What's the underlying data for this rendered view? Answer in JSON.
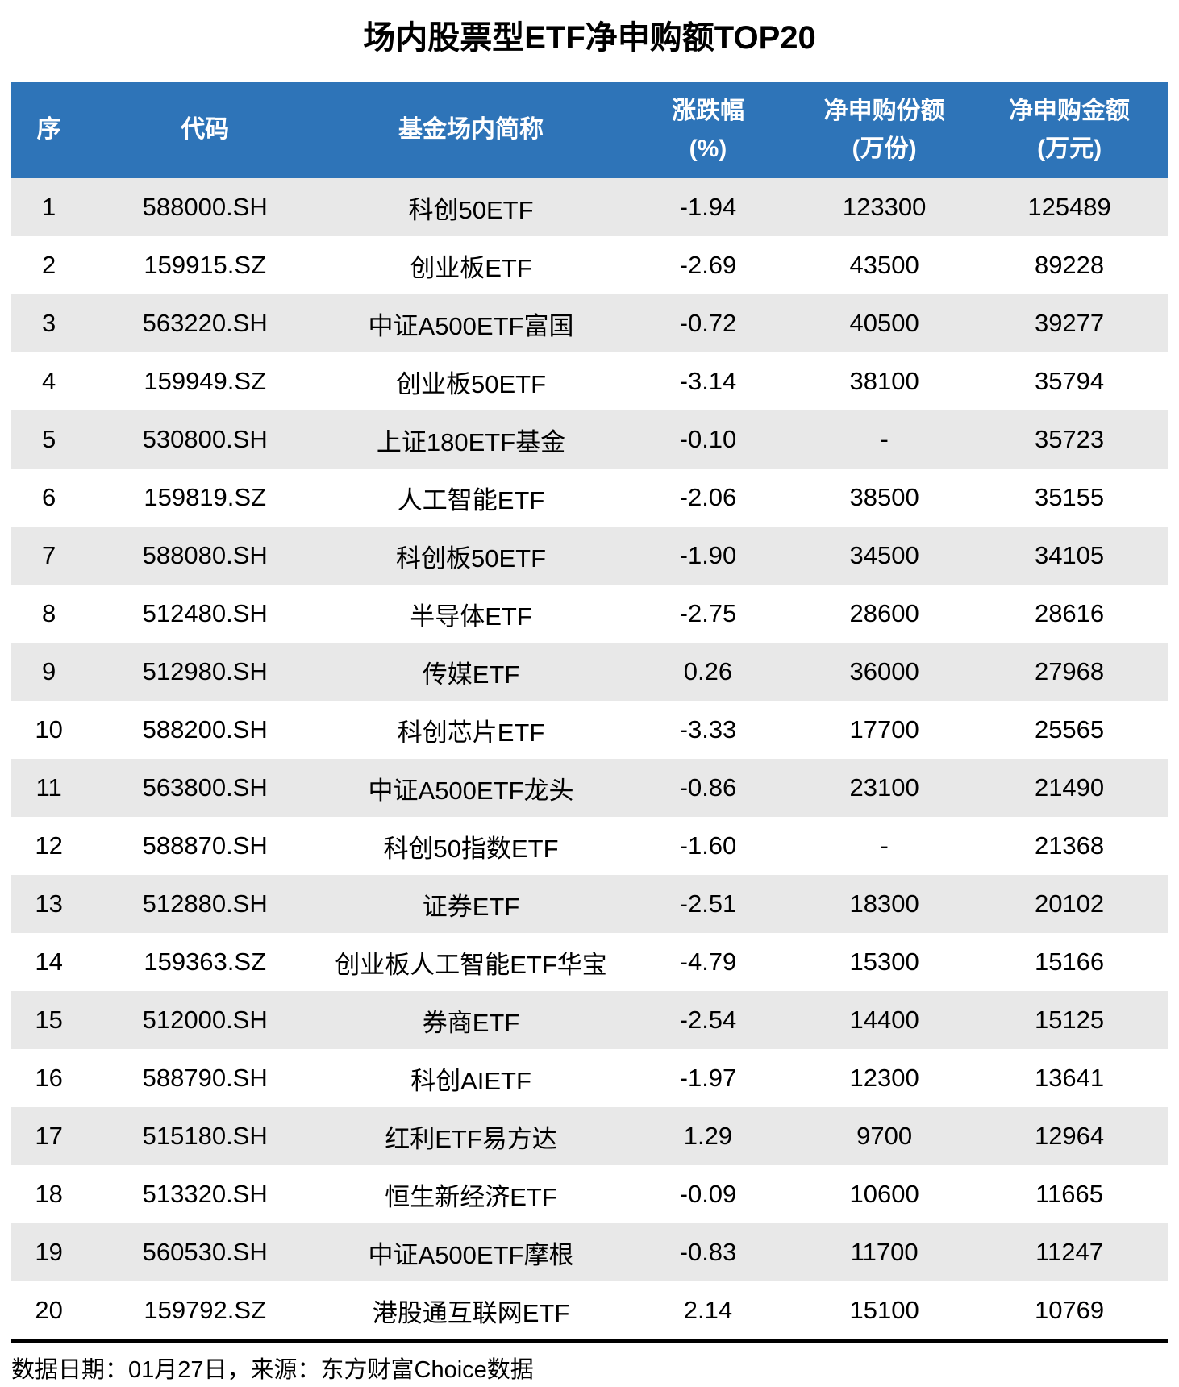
{
  "title": "场内股票型ETF净申购额TOP20",
  "colors": {
    "header_bg": "#2E74B8",
    "header_text": "#FFFFFF",
    "alt_row_bg": "#E8E8E8",
    "body_text": "#000000",
    "divider": "#000000"
  },
  "table": {
    "headers": [
      {
        "line1": "序",
        "line2": ""
      },
      {
        "line1": "代码",
        "line2": ""
      },
      {
        "line1": "基金场内简称",
        "line2": ""
      },
      {
        "line1": "涨跌幅",
        "line2": "(%)"
      },
      {
        "line1": "净申购份额",
        "line2": "(万份)"
      },
      {
        "line1": "净申购金额",
        "line2": "(万元)"
      }
    ],
    "rows": [
      [
        "1",
        "588000.SH",
        "科创50ETF",
        "-1.94",
        "123300",
        "125489"
      ],
      [
        "2",
        "159915.SZ",
        "创业板ETF",
        "-2.69",
        "43500",
        "89228"
      ],
      [
        "3",
        "563220.SH",
        "中证A500ETF富国",
        "-0.72",
        "40500",
        "39277"
      ],
      [
        "4",
        "159949.SZ",
        "创业板50ETF",
        "-3.14",
        "38100",
        "35794"
      ],
      [
        "5",
        "530800.SH",
        "上证180ETF基金",
        "-0.10",
        "-",
        "35723"
      ],
      [
        "6",
        "159819.SZ",
        "人工智能ETF",
        "-2.06",
        "38500",
        "35155"
      ],
      [
        "7",
        "588080.SH",
        "科创板50ETF",
        "-1.90",
        "34500",
        "34105"
      ],
      [
        "8",
        "512480.SH",
        "半导体ETF",
        "-2.75",
        "28600",
        "28616"
      ],
      [
        "9",
        "512980.SH",
        "传媒ETF",
        "0.26",
        "36000",
        "27968"
      ],
      [
        "10",
        "588200.SH",
        "科创芯片ETF",
        "-3.33",
        "17700",
        "25565"
      ],
      [
        "11",
        "563800.SH",
        "中证A500ETF龙头",
        "-0.86",
        "23100",
        "21490"
      ],
      [
        "12",
        "588870.SH",
        "科创50指数ETF",
        "-1.60",
        "-",
        "21368"
      ],
      [
        "13",
        "512880.SH",
        "证券ETF",
        "-2.51",
        "18300",
        "20102"
      ],
      [
        "14",
        "159363.SZ",
        "创业板人工智能ETF华宝",
        "-4.79",
        "15300",
        "15166"
      ],
      [
        "15",
        "512000.SH",
        "券商ETF",
        "-2.54",
        "14400",
        "15125"
      ],
      [
        "16",
        "588790.SH",
        "科创AIETF",
        "-1.97",
        "12300",
        "13641"
      ],
      [
        "17",
        "515180.SH",
        "红利ETF易方达",
        "1.29",
        "9700",
        "12964"
      ],
      [
        "18",
        "513320.SH",
        "恒生新经济ETF",
        "-0.09",
        "10600",
        "11665"
      ],
      [
        "19",
        "560530.SH",
        "中证A500ETF摩根",
        "-0.83",
        "11700",
        "11247"
      ],
      [
        "20",
        "159792.SZ",
        "港股通互联网ETF",
        "2.14",
        "15100",
        "10769"
      ]
    ]
  },
  "footer": "数据日期：01月27日，来源：东方财富Choice数据",
  "chart_data": {
    "type": "table",
    "title": "场内股票型ETF净申购额TOP20",
    "columns": [
      "序",
      "代码",
      "基金场内简称",
      "涨跌幅(%)",
      "净申购份额(万份)",
      "净申购金额(万元)"
    ],
    "rows": [
      [
        1,
        "588000.SH",
        "科创50ETF",
        -1.94,
        123300,
        125489
      ],
      [
        2,
        "159915.SZ",
        "创业板ETF",
        -2.69,
        43500,
        89228
      ],
      [
        3,
        "563220.SH",
        "中证A500ETF富国",
        -0.72,
        40500,
        39277
      ],
      [
        4,
        "159949.SZ",
        "创业板50ETF",
        -3.14,
        38100,
        35794
      ],
      [
        5,
        "530800.SH",
        "上证180ETF基金",
        -0.1,
        null,
        35723
      ],
      [
        6,
        "159819.SZ",
        "人工智能ETF",
        -2.06,
        38500,
        35155
      ],
      [
        7,
        "588080.SH",
        "科创板50ETF",
        -1.9,
        34500,
        34105
      ],
      [
        8,
        "512480.SH",
        "半导体ETF",
        -2.75,
        28600,
        28616
      ],
      [
        9,
        "512980.SH",
        "传媒ETF",
        0.26,
        36000,
        27968
      ],
      [
        10,
        "588200.SH",
        "科创芯片ETF",
        -3.33,
        17700,
        25565
      ],
      [
        11,
        "563800.SH",
        "中证A500ETF龙头",
        -0.86,
        23100,
        21490
      ],
      [
        12,
        "588870.SH",
        "科创50指数ETF",
        -1.6,
        null,
        21368
      ],
      [
        13,
        "512880.SH",
        "证券ETF",
        -2.51,
        18300,
        20102
      ],
      [
        14,
        "159363.SZ",
        "创业板人工智能ETF华宝",
        -4.79,
        15300,
        15166
      ],
      [
        15,
        "512000.SH",
        "券商ETF",
        -2.54,
        14400,
        15125
      ],
      [
        16,
        "588790.SH",
        "科创AIETF",
        -1.97,
        12300,
        13641
      ],
      [
        17,
        "515180.SH",
        "红利ETF易方达",
        1.29,
        9700,
        12964
      ],
      [
        18,
        "513320.SH",
        "恒生新经济ETF",
        -0.09,
        10600,
        11665
      ],
      [
        19,
        "560530.SH",
        "中证A500ETF摩根",
        -0.83,
        11700,
        11247
      ],
      [
        20,
        "159792.SZ",
        "港股通互联网ETF",
        2.14,
        15100,
        10769
      ]
    ],
    "source": "数据日期：01月27日，来源：东方财富Choice数据"
  }
}
